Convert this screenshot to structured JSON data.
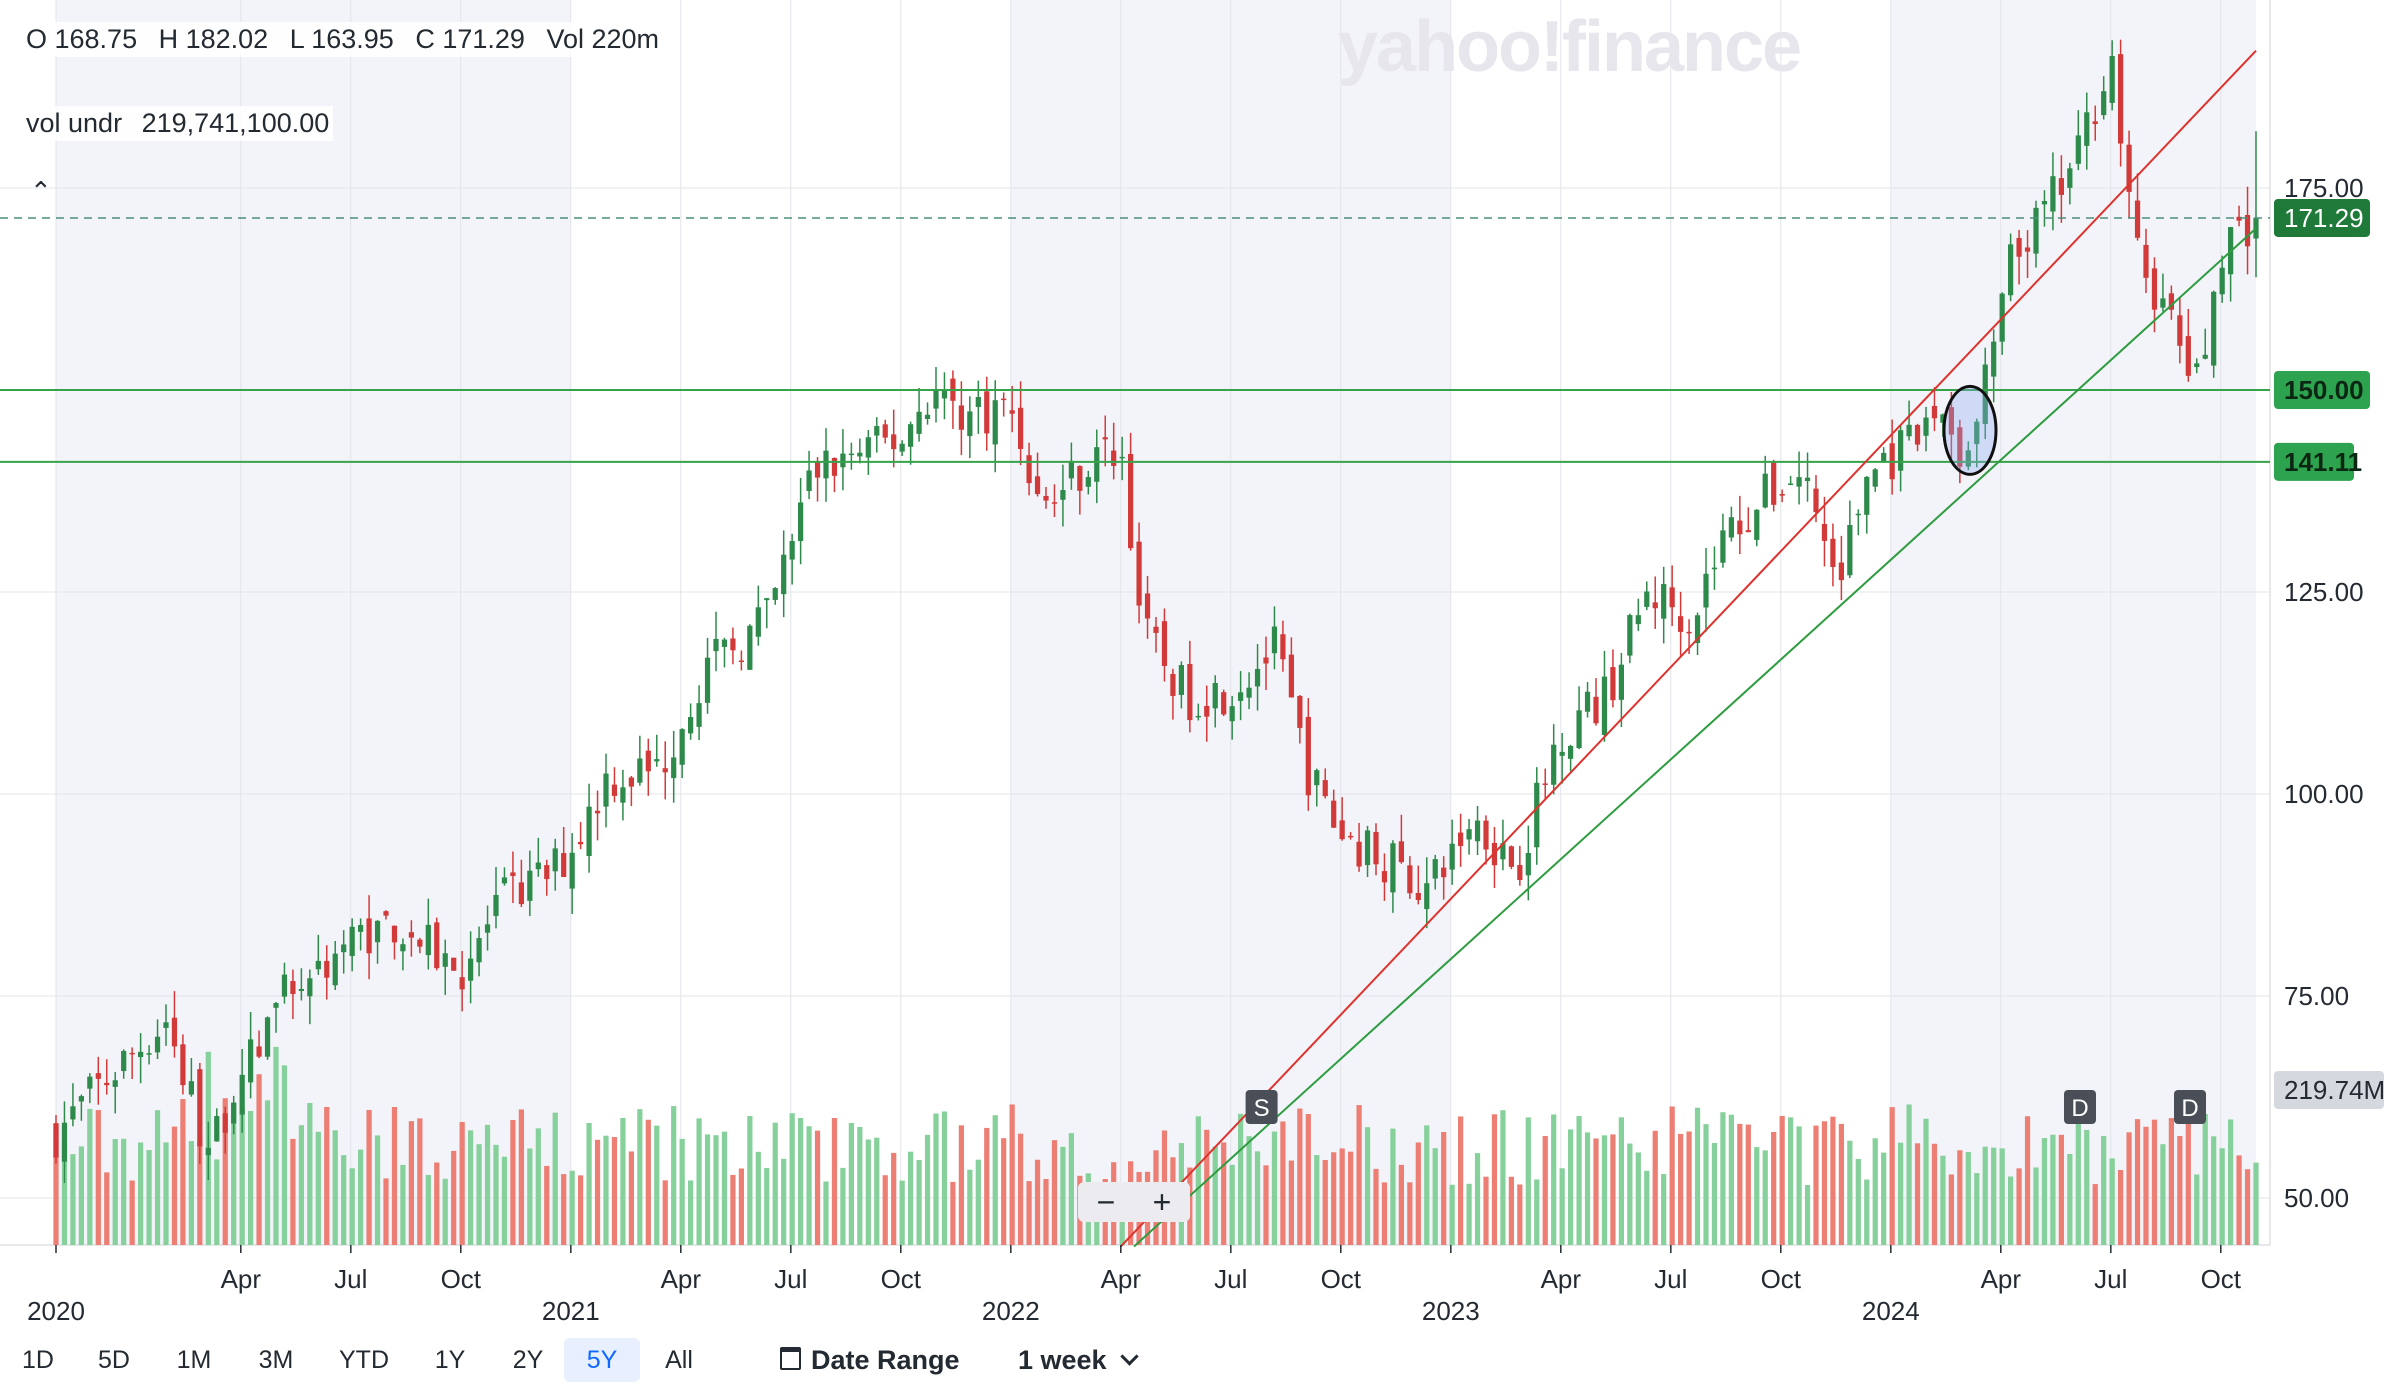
{
  "header": {
    "open": "O 168.75",
    "high": "H 182.02",
    "low": "L 163.95",
    "close": "C 171.29",
    "vol": "Vol 220m",
    "vol_undr_label": "vol undr",
    "vol_undr_value": "219,741,100.00",
    "watermark": "yahoo!finance",
    "collapse_icon": "chevron-up-icon"
  },
  "chart_data": {
    "type": "candlestick",
    "title": "",
    "xlabel": "",
    "ylabel": "",
    "interval": "1 week",
    "range": "5Y",
    "ylim": [
      43,
      198
    ],
    "y_ticks": [
      "175.00",
      "125.00",
      "100.00",
      "75.00",
      "50.00"
    ],
    "x_ticks": [
      {
        "label": "Apr",
        "x": 2020.25
      },
      {
        "label": "Jul",
        "x": 2020.5
      },
      {
        "label": "Oct",
        "x": 2020.75
      },
      {
        "label": "Apr",
        "x": 2021.25
      },
      {
        "label": "Jul",
        "x": 2021.5
      },
      {
        "label": "Oct",
        "x": 2021.75
      },
      {
        "label": "Apr",
        "x": 2022.25
      },
      {
        "label": "Jul",
        "x": 2022.5
      },
      {
        "label": "Oct",
        "x": 2022.75
      },
      {
        "label": "Apr",
        "x": 2023.25
      },
      {
        "label": "Jul",
        "x": 2023.5
      },
      {
        "label": "Oct",
        "x": 2023.75
      },
      {
        "label": "Apr",
        "x": 2024.25
      },
      {
        "label": "Jul",
        "x": 2024.5
      },
      {
        "label": "Oct",
        "x": 2024.75
      }
    ],
    "year_labels": [
      {
        "label": "2020",
        "x": 2019.83
      },
      {
        "label": "2021",
        "x": 2021.0
      },
      {
        "label": "2022",
        "x": 2022.0
      },
      {
        "label": "2023",
        "x": 2023.0
      },
      {
        "label": "2024",
        "x": 2024.0
      }
    ],
    "year_shading_start": 2019.83,
    "x_start": 2019.83,
    "x_end": 2024.83,
    "price_path": [
      [
        2019.83,
        58
      ],
      [
        2019.95,
        65
      ],
      [
        2020.08,
        72
      ],
      [
        2020.18,
        55
      ],
      [
        2020.22,
        62
      ],
      [
        2020.35,
        75
      ],
      [
        2020.5,
        82
      ],
      [
        2020.6,
        84
      ],
      [
        2020.75,
        78
      ],
      [
        2020.85,
        87
      ],
      [
        2020.95,
        90
      ],
      [
        2021.0,
        93
      ],
      [
        2021.08,
        102
      ],
      [
        2021.2,
        103
      ],
      [
        2021.3,
        115
      ],
      [
        2021.45,
        122
      ],
      [
        2021.55,
        140
      ],
      [
        2021.65,
        142
      ],
      [
        2021.75,
        144
      ],
      [
        2021.82,
        150
      ],
      [
        2021.9,
        147
      ],
      [
        2022.0,
        148
      ],
      [
        2022.07,
        135
      ],
      [
        2022.15,
        140
      ],
      [
        2022.25,
        143
      ],
      [
        2022.3,
        120
      ],
      [
        2022.4,
        112
      ],
      [
        2022.5,
        113
      ],
      [
        2022.6,
        118
      ],
      [
        2022.68,
        102
      ],
      [
        2022.75,
        95
      ],
      [
        2022.85,
        92
      ],
      [
        2022.95,
        88
      ],
      [
        2023.05,
        97
      ],
      [
        2023.15,
        91
      ],
      [
        2023.25,
        108
      ],
      [
        2023.35,
        112
      ],
      [
        2023.45,
        125
      ],
      [
        2023.55,
        122
      ],
      [
        2023.62,
        132
      ],
      [
        2023.72,
        137
      ],
      [
        2023.8,
        140
      ],
      [
        2023.88,
        126
      ],
      [
        2023.95,
        140
      ],
      [
        2024.05,
        143
      ],
      [
        2024.12,
        148
      ],
      [
        2024.17,
        140
      ],
      [
        2024.22,
        152
      ],
      [
        2024.27,
        165
      ],
      [
        2024.35,
        172
      ],
      [
        2024.42,
        178
      ],
      [
        2024.5,
        192
      ],
      [
        2024.55,
        168
      ],
      [
        2024.62,
        160
      ],
      [
        2024.7,
        150
      ],
      [
        2024.75,
        168
      ],
      [
        2024.83,
        171.29
      ]
    ],
    "volume_max_millions": 800,
    "annotations": {
      "last_price": "171.29",
      "last_volume": "219.74M",
      "horizontal_lines": [
        {
          "label": "150.00",
          "value": 150.0
        },
        {
          "label": "141.11",
          "value": 141.11
        }
      ],
      "trend_red": {
        "from": [
          2022.25,
          44
        ],
        "to": [
          2024.83,
          192
        ]
      },
      "trend_green": {
        "from": [
          2022.28,
          44
        ],
        "to": [
          2024.83,
          170
        ]
      },
      "event_markers": [
        {
          "label": "S",
          "x": 2022.57
        },
        {
          "label": "D",
          "x": 2024.43
        },
        {
          "label": "D",
          "x": 2024.68
        }
      ],
      "circle_highlight": {
        "x": 2024.18,
        "y": 145
      }
    }
  },
  "colors": {
    "up": "#2d8a4a",
    "down": "#d23a3a",
    "volume_up": "#86d09b",
    "volume_down": "#ec7e74",
    "trend_red": "#e0322d",
    "trend_green": "#2d9c3e",
    "hline": "#36a34a",
    "price_badge": "#1f7a3a",
    "hline_badge": "#2ea34f",
    "volume_badge": "#d5d8de",
    "year_shade": "#f3f4f9",
    "grid": "#e2e4e9"
  },
  "zoom": {
    "minus": "−",
    "plus": "+"
  },
  "toolbar": {
    "ranges": [
      "1D",
      "5D",
      "1M",
      "3M",
      "YTD",
      "1Y",
      "2Y",
      "5Y",
      "All"
    ],
    "selected": "5Y",
    "date_range_label": "Date Range",
    "calendar_icon": "calendar-icon",
    "interval_label": "1 week",
    "chevron_icon": "chevron-down-icon"
  }
}
